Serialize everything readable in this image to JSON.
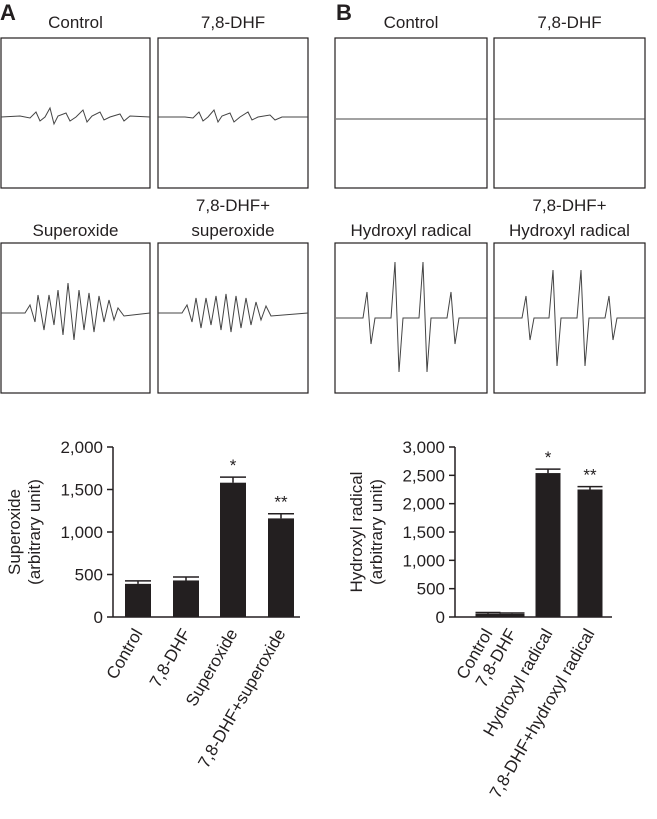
{
  "panels": [
    {
      "label": "A",
      "spectra": [
        [
          "Control"
        ],
        [
          "7,8-DHF"
        ],
        [
          "Superoxide"
        ],
        [
          "7,8-DHF+",
          "superoxide"
        ]
      ]
    },
    {
      "label": "B",
      "spectra": [
        [
          "Control"
        ],
        [
          "7,8-DHF"
        ],
        [
          "Hydroxyl radical"
        ],
        [
          "7,8-DHF+",
          "Hydroxyl radical"
        ]
      ]
    }
  ],
  "chart_data": [
    {
      "type": "bar",
      "y_label": [
        "Superoxide",
        "(arbitrary unit)"
      ],
      "categories": [
        "Control",
        "7,8-DHF",
        "Superoxide",
        "7,8-DHF+superoxide"
      ],
      "values": [
        390,
        430,
        1580,
        1160
      ],
      "errors": [
        35,
        40,
        65,
        55
      ],
      "annotations": [
        null,
        null,
        "*",
        "**"
      ],
      "color": "#231f20",
      "ylim": [
        0,
        2000
      ],
      "yticks": [
        0,
        500,
        {
          "value": 1000,
          "label": "1,000"
        },
        {
          "value": 1500,
          "label": "1,500"
        },
        {
          "value": 2000,
          "label": "2,000"
        }
      ]
    },
    {
      "type": "bar",
      "y_label": [
        "Hydroxyl radical",
        "(arbitrary unit)"
      ],
      "categories": [
        "Control",
        "7,8-DHF",
        "Hydroxyl radical",
        "7,8-DHF+hydroxyl radical"
      ],
      "values": [
        60,
        55,
        2540,
        2250
      ],
      "errors": [
        20,
        15,
        70,
        50
      ],
      "annotations": [
        null,
        null,
        "*",
        "**"
      ],
      "color": "#231f20",
      "ylim": [
        0,
        3000
      ],
      "yticks": [
        0,
        500,
        {
          "value": 1000,
          "label": "1,000"
        },
        {
          "value": 1500,
          "label": "1,500"
        },
        {
          "value": 2000,
          "label": "2,000"
        },
        {
          "value": 2500,
          "label": "2,500"
        },
        {
          "value": 3000,
          "label": "3,000"
        }
      ]
    }
  ]
}
